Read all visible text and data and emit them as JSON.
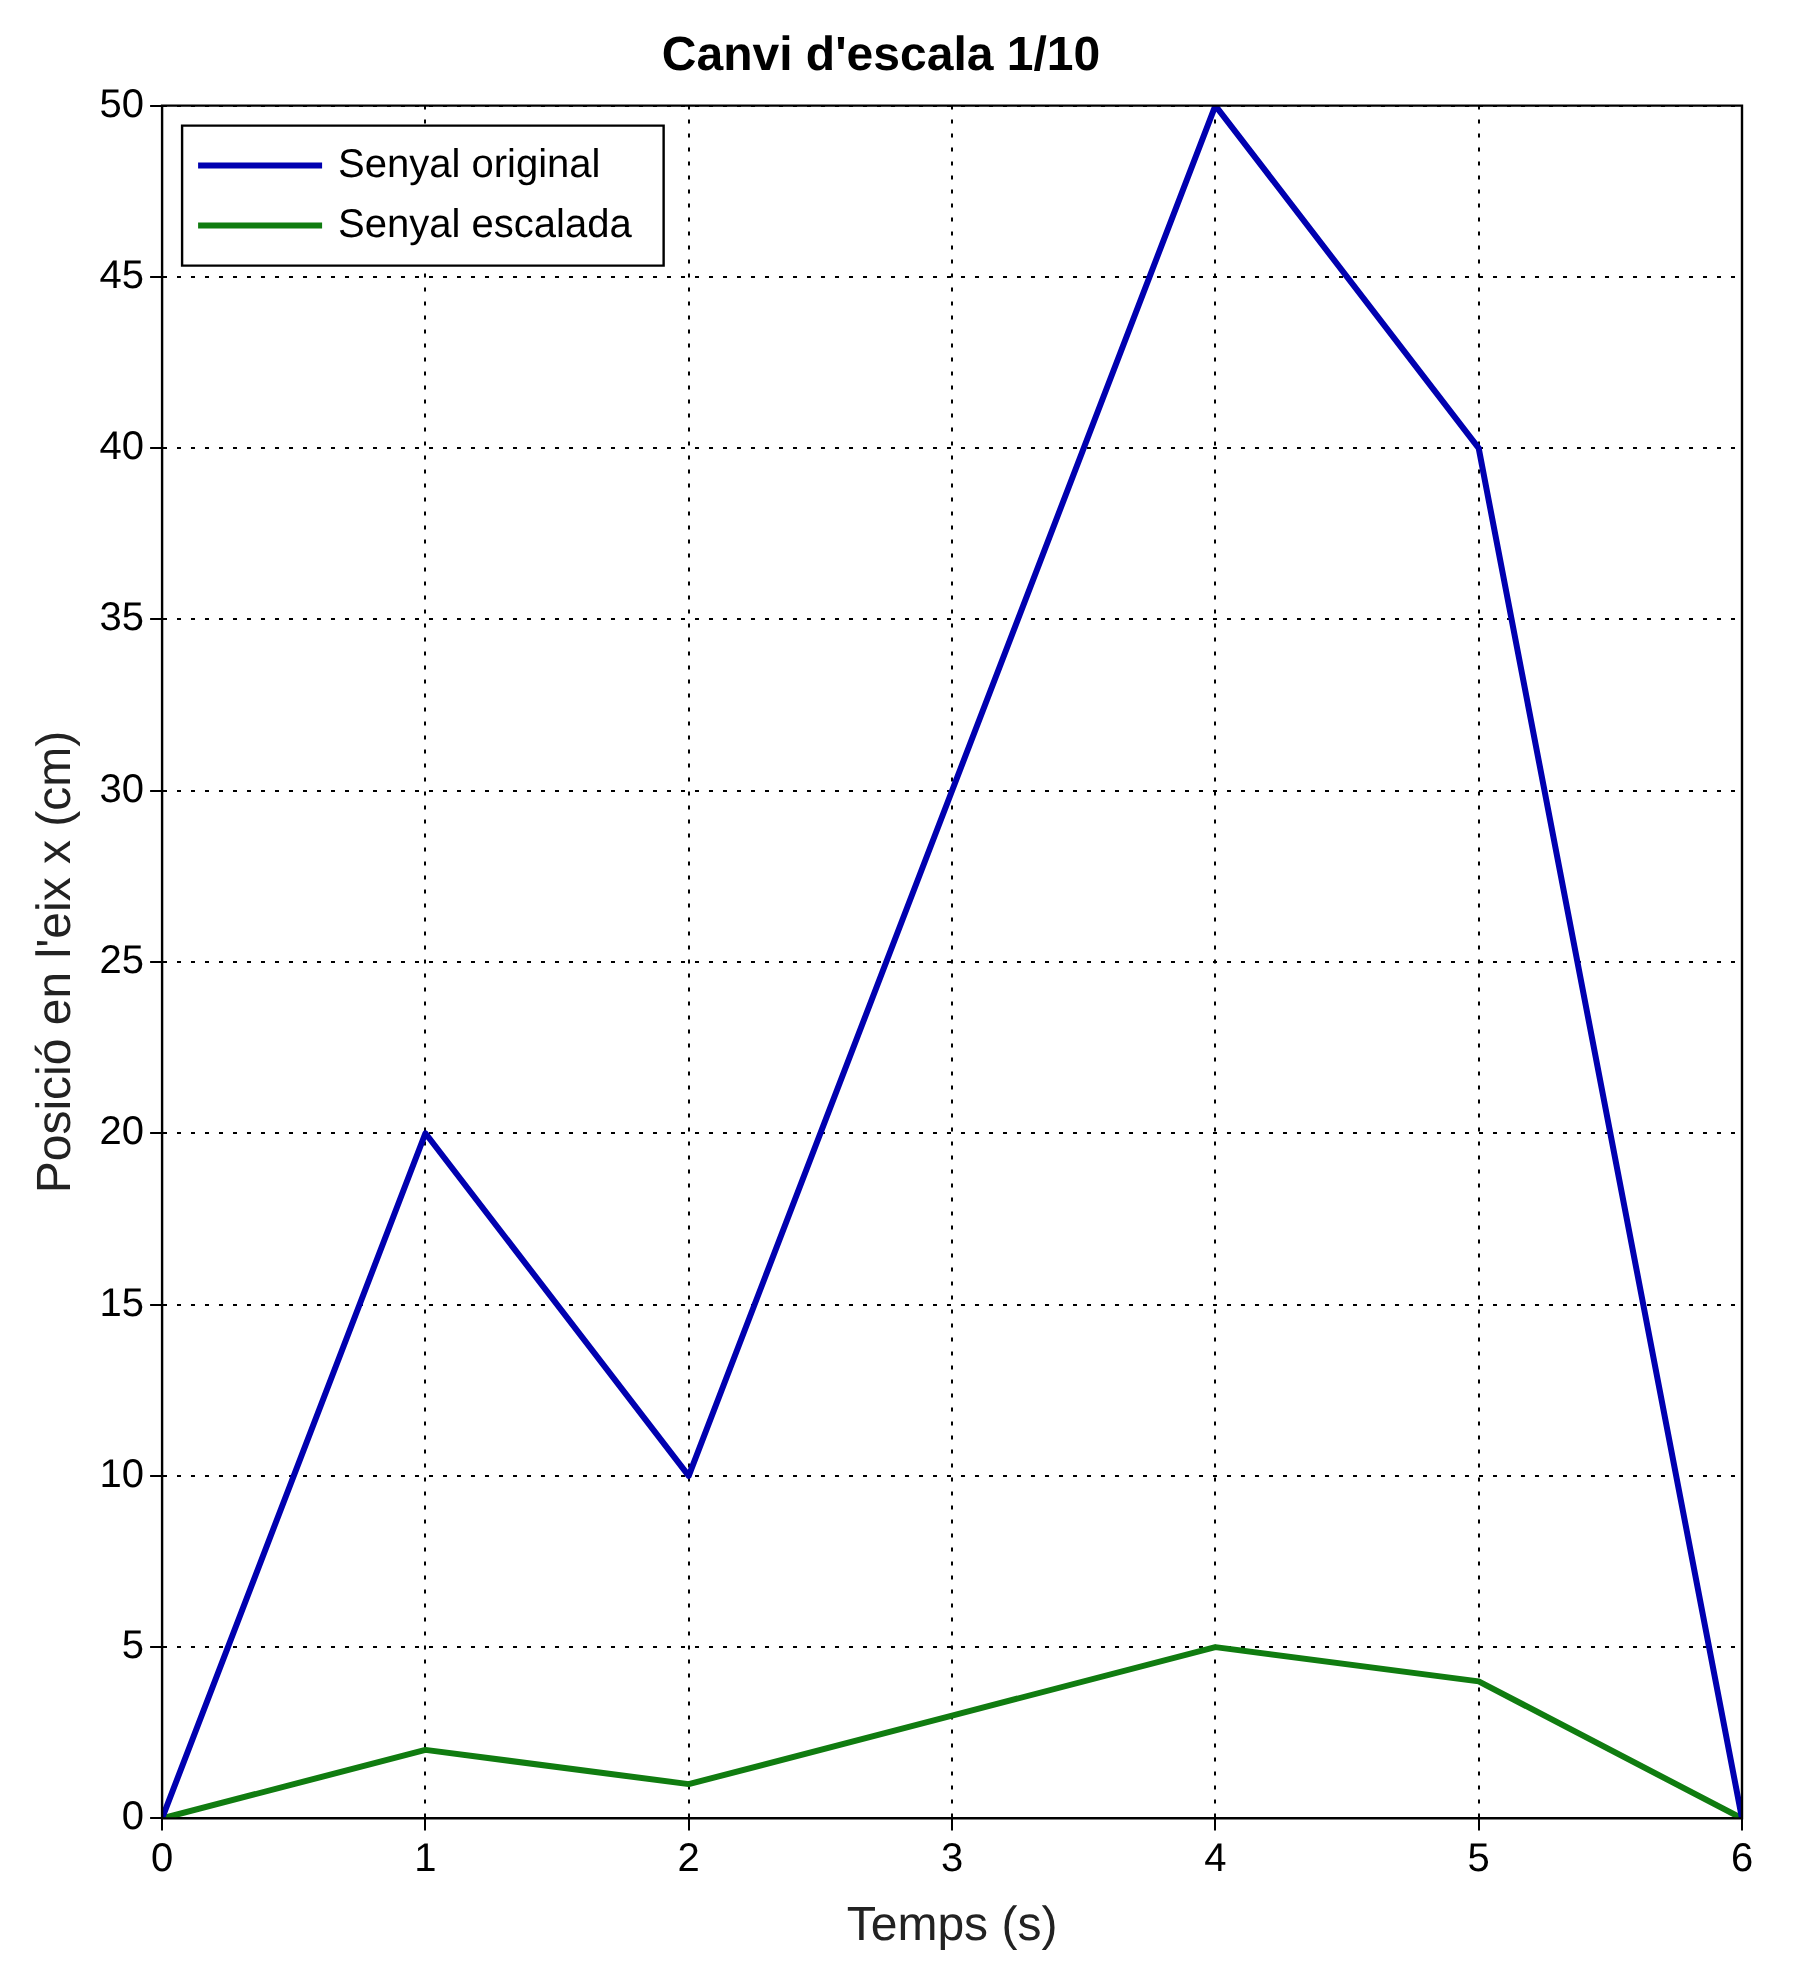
{
  "chart_data": {
    "type": "line",
    "title": "Canvi d'escala 1/10",
    "xlabel": "Temps (s)",
    "ylabel": "Posició en l'eix x (cm)",
    "x": [
      0,
      1,
      2,
      3,
      4,
      5,
      6
    ],
    "series": [
      {
        "name": "Senyal original",
        "color": "#0000b0",
        "values": [
          0,
          20,
          10,
          30,
          50,
          40,
          0
        ]
      },
      {
        "name": "Senyal escalada",
        "color": "#107c10",
        "values": [
          0,
          2,
          1,
          3,
          5,
          4,
          0
        ]
      }
    ],
    "xlim": [
      0,
      6
    ],
    "xticks": [
      0,
      1,
      2,
      3,
      4,
      5,
      6
    ],
    "ylim": [
      0,
      50
    ],
    "yticks": [
      0,
      5,
      10,
      15,
      20,
      25,
      30,
      35,
      40,
      45,
      50
    ],
    "grid": true,
    "legend": "top left",
    "marker": "none",
    "line_style": "solid"
  }
}
